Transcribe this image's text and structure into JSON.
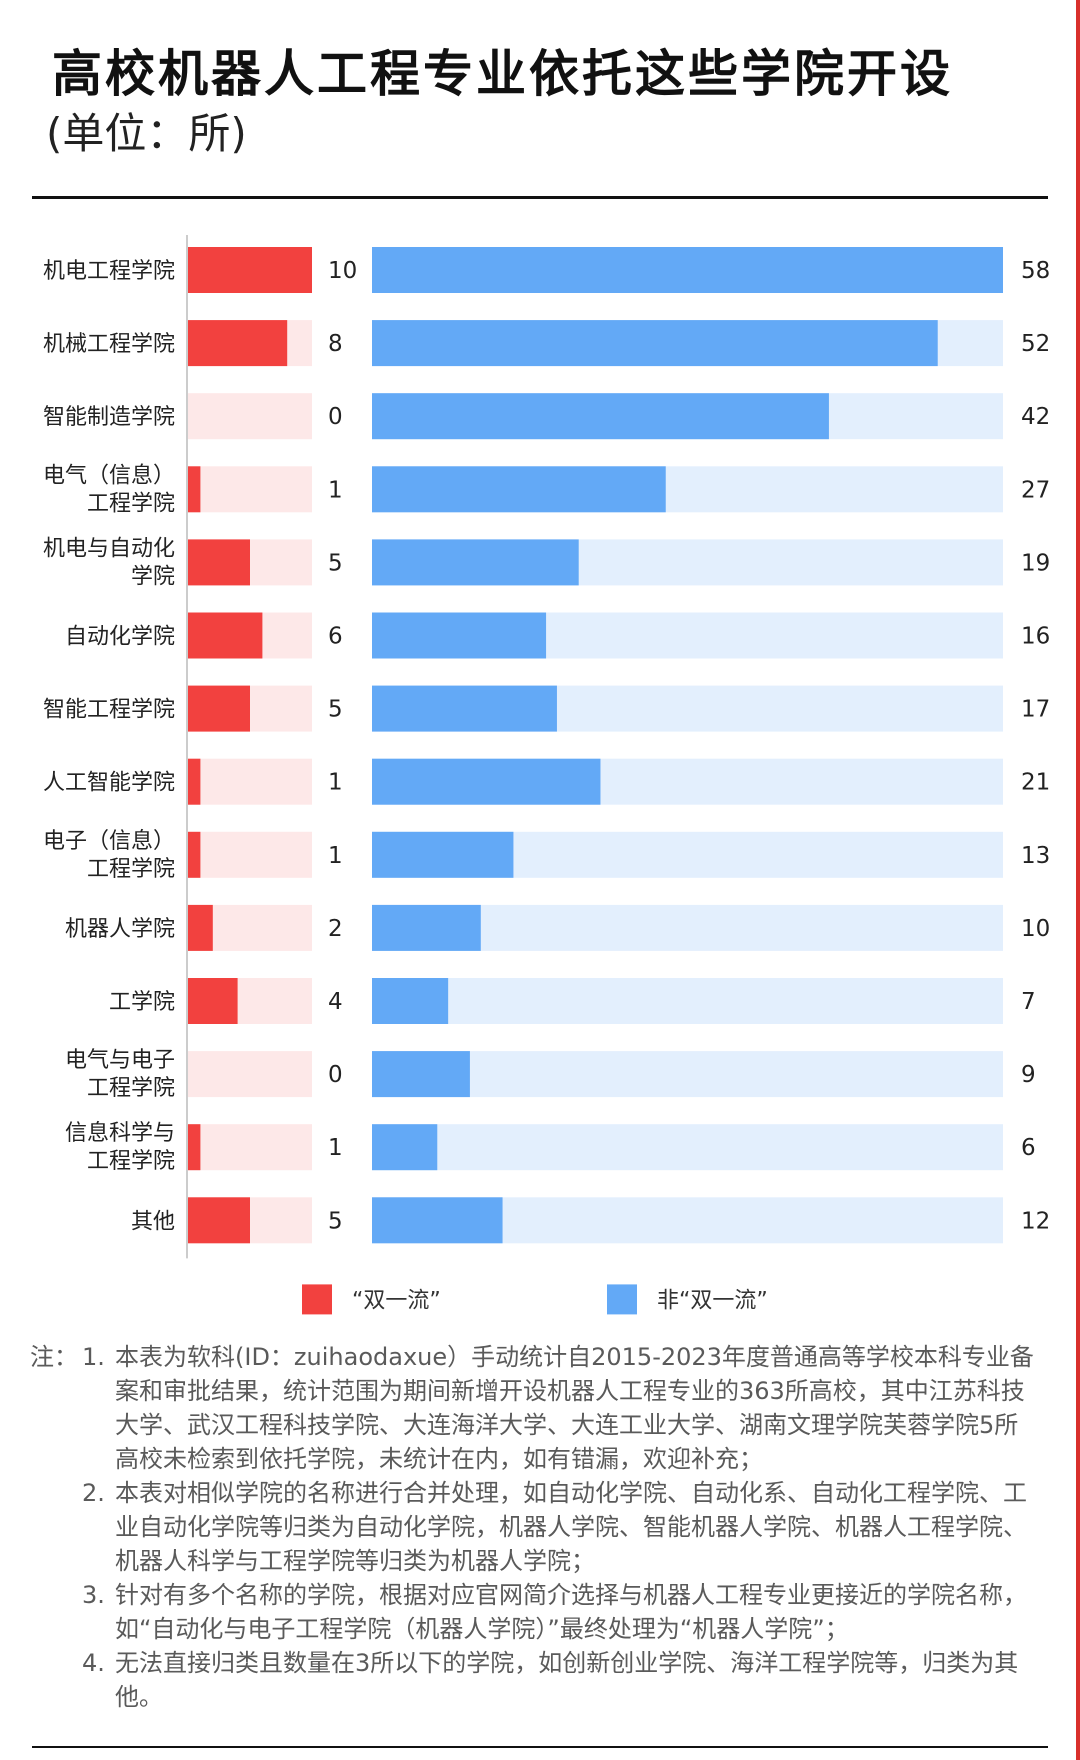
{
  "title": "高校机器人工程专业依托这些学院开设",
  "unit": "(单位：所)",
  "chart_data": {
    "type": "bar",
    "orientation": "horizontal",
    "categories": [
      [
        "机电工程学院"
      ],
      [
        "机械工程学院"
      ],
      [
        "智能制造学院"
      ],
      [
        "电气（信息）",
        "工程学院"
      ],
      [
        "机电与自动化",
        "学院"
      ],
      [
        "自动化学院"
      ],
      [
        "智能工程学院"
      ],
      [
        "人工智能学院"
      ],
      [
        "电子（信息）",
        "工程学院"
      ],
      [
        "机器人学院"
      ],
      [
        "工学院"
      ],
      [
        "电气与电子",
        "工程学院"
      ],
      [
        "信息科学与",
        "工程学院"
      ],
      [
        "其他"
      ]
    ],
    "series": [
      {
        "name": "“双一流”",
        "color": "#f2413f",
        "track_color": "#fde8e8",
        "xlim": [
          0,
          10
        ],
        "values": [
          10,
          8,
          0,
          1,
          5,
          6,
          5,
          1,
          1,
          2,
          4,
          0,
          1,
          5
        ]
      },
      {
        "name": "非“双一流”",
        "color": "#63a9f6",
        "track_color": "#e3effd",
        "xlim": [
          0,
          58
        ],
        "values": [
          58,
          52,
          42,
          27,
          19,
          16,
          17,
          21,
          13,
          10,
          7,
          9,
          6,
          12
        ]
      }
    ],
    "legend_position": "bottom"
  },
  "notes": {
    "lead": "注：",
    "items": [
      {
        "num": "1.",
        "text": "本表为软科(ID：zuihaodaxue）手动统计自2015-2023年度普通高等学校本科专业备案和审批结果，统计范围为期间新增开设机器人工程专业的363所高校，其中江苏科技大学、武汉工程科技学院、大连海洋大学、大连工业大学、湖南文理学院芙蓉学院5所高校未检索到依托学院，未统计在内，如有错漏，欢迎补充；"
      },
      {
        "num": "2.",
        "text": "本表对相似学院的名称进行合并处理，如自动化学院、自动化系、自动化工程学院、工业自动化学院等归类为自动化学院，机器人学院、智能机器人学院、机器人工程学院、机器人科学与工程学院等归类为机器人学院；"
      },
      {
        "num": "3.",
        "text": "针对有多个名称的学院，根据对应官网简介选择与机器人工程专业更接近的学院名称，如“自动化与电子工程学院（机器人学院）”最终处理为“机器人学院”；"
      },
      {
        "num": "4.",
        "text": "无法直接归类且数量在3所以下的学院，如创新创业学院、海洋工程学院等，归类为其他。"
      }
    ]
  }
}
